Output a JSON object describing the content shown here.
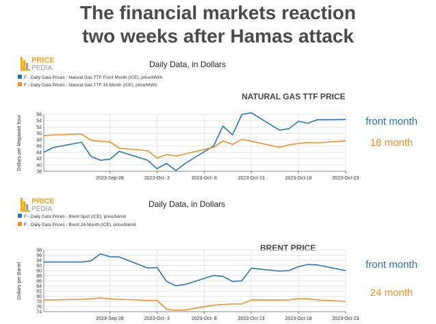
{
  "slide": {
    "title_line1": "The financial markets reaction",
    "title_line2": "two weeks after Hamas attack"
  },
  "brand": {
    "line1": "PRICE",
    "line2": "PEDIA"
  },
  "colors": {
    "blue": "#2b73ad",
    "orange": "#f28e2b",
    "logo_orange": "#f5a623",
    "logo_gray": "#9a9a9a"
  },
  "chart_data": [
    {
      "type": "line",
      "id": "gas",
      "title": "NATURAL GAS TTF PRICE",
      "subtitle": "Daily Data, in Dollars",
      "ylabel": "Dollars per Megawatt hour",
      "ylim": [
        38,
        56
      ],
      "yticks": [
        38,
        40,
        42,
        44,
        46,
        48,
        50,
        52,
        54,
        56
      ],
      "xlim": [
        "2023-09-21",
        "2023-10-23"
      ],
      "xticks": [
        "2023-Sep-28",
        "2023-Oct- 3",
        "2023-Oct- 8",
        "2023-Oct-13",
        "2023-Oct-18",
        "2023-Oct-23"
      ],
      "grid": true,
      "legend_position": "top-left",
      "series": [
        {
          "name": "F - Daily Data Prices - Natural Gas TTF Front Month (ICE), price/MWh",
          "side_label": "front month",
          "color": "#2b73ad",
          "x": [
            "2023-09-21",
            "2023-09-22",
            "2023-09-25",
            "2023-09-26",
            "2023-09-27",
            "2023-09-28",
            "2023-09-29",
            "2023-10-02",
            "2023-10-03",
            "2023-10-04",
            "2023-10-05",
            "2023-10-06",
            "2023-10-09",
            "2023-10-10",
            "2023-10-11",
            "2023-10-12",
            "2023-10-13",
            "2023-10-16",
            "2023-10-17",
            "2023-10-18",
            "2023-10-19",
            "2023-10-20",
            "2023-10-23"
          ],
          "y": [
            44.0,
            45.5,
            47.2,
            42.7,
            41.5,
            41.8,
            44.3,
            41.5,
            38.8,
            40.5,
            38.2,
            40.5,
            46.0,
            52.3,
            49.5,
            56.0,
            56.5,
            51.0,
            51.5,
            53.8,
            53.2,
            54.3,
            54.4
          ]
        },
        {
          "name": "F - Daily Data Prices - Natural Gas TTF 18 Month (ICE), price/MWh",
          "side_label": "18 month",
          "color": "#f28e2b",
          "x": [
            "2023-09-21",
            "2023-09-22",
            "2023-09-25",
            "2023-09-26",
            "2023-09-27",
            "2023-09-28",
            "2023-09-29",
            "2023-10-02",
            "2023-10-03",
            "2023-10-04",
            "2023-10-05",
            "2023-10-06",
            "2023-10-09",
            "2023-10-10",
            "2023-10-11",
            "2023-10-12",
            "2023-10-13",
            "2023-10-16",
            "2023-10-17",
            "2023-10-18",
            "2023-10-19",
            "2023-10-20",
            "2023-10-23"
          ],
          "y": [
            49.3,
            49.5,
            49.8,
            47.8,
            47.5,
            47.3,
            45.3,
            44.5,
            42.2,
            43.3,
            42.8,
            43.5,
            45.6,
            47.6,
            46.5,
            48.1,
            47.5,
            45.6,
            46.4,
            46.8,
            47.1,
            47.0,
            47.6
          ]
        }
      ]
    },
    {
      "type": "line",
      "id": "brent",
      "title": "BRENT PRICE",
      "subtitle": "Daily Data, in Dollars",
      "ylabel": "Dollars per Barrel",
      "ylim": [
        74,
        98
      ],
      "yticks": [
        74,
        76,
        78,
        80,
        82,
        84,
        86,
        88,
        90,
        92,
        94,
        96,
        98
      ],
      "xlim": [
        "2023-09-21",
        "2023-10-23"
      ],
      "xticks": [
        "2023-Sep-28",
        "2023-Oct- 3",
        "2023-Oct- 8",
        "2023-Oct-13",
        "2023-Oct-18",
        "2023-Oct-23"
      ],
      "grid": true,
      "legend_position": "top-left",
      "series": [
        {
          "name": "F - Daily Data Prices - Brent Spot (ICE), price/barrel",
          "side_label": "front month",
          "color": "#2b73ad",
          "x": [
            "2023-09-21",
            "2023-09-22",
            "2023-09-25",
            "2023-09-26",
            "2023-09-27",
            "2023-09-28",
            "2023-09-29",
            "2023-10-02",
            "2023-10-03",
            "2023-10-04",
            "2023-10-05",
            "2023-10-06",
            "2023-10-09",
            "2023-10-10",
            "2023-10-11",
            "2023-10-12",
            "2023-10-13",
            "2023-10-16",
            "2023-10-17",
            "2023-10-18",
            "2023-10-19",
            "2023-10-20",
            "2023-10-23"
          ],
          "y": [
            93.3,
            93.3,
            93.3,
            93.8,
            96.5,
            95.4,
            95.3,
            91.0,
            91.2,
            85.8,
            84.1,
            84.6,
            88.1,
            87.7,
            85.8,
            86.0,
            90.9,
            89.8,
            90.0,
            91.5,
            92.4,
            92.2,
            90.0
          ]
        },
        {
          "name": "F - Daily Data Prices - Brent 24-Month (ICE), price/barrel",
          "side_label": "24 month",
          "color": "#f28e2b",
          "x": [
            "2023-09-21",
            "2023-09-22",
            "2023-09-25",
            "2023-09-26",
            "2023-09-27",
            "2023-09-28",
            "2023-09-29",
            "2023-10-02",
            "2023-10-03",
            "2023-10-04",
            "2023-10-05",
            "2023-10-06",
            "2023-10-09",
            "2023-10-10",
            "2023-10-11",
            "2023-10-12",
            "2023-10-13",
            "2023-10-16",
            "2023-10-17",
            "2023-10-18",
            "2023-10-19",
            "2023-10-20",
            "2023-10-23"
          ],
          "y": [
            78.6,
            78.6,
            78.8,
            79.0,
            79.3,
            79.0,
            78.8,
            78.4,
            78.4,
            75.0,
            74.5,
            74.7,
            76.5,
            76.8,
            77.0,
            77.0,
            78.6,
            78.5,
            78.6,
            79.1,
            79.0,
            78.6,
            78.0
          ]
        }
      ]
    }
  ]
}
